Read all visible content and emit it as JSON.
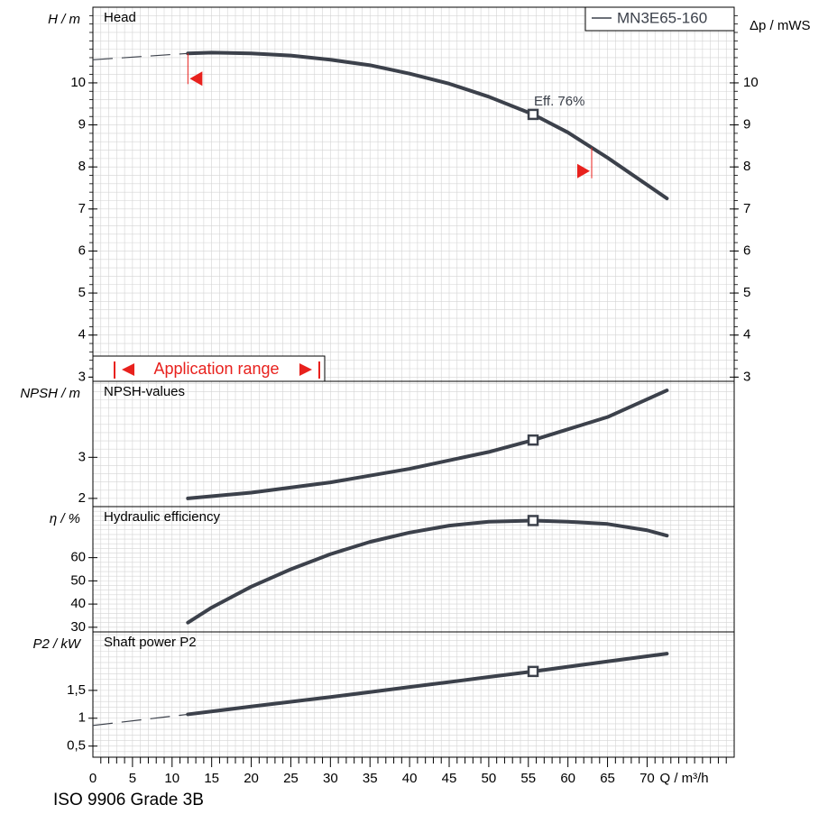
{
  "footer": "ISO 9906 Grade 3B",
  "legend": {
    "label": "MN3E65-160"
  },
  "x_axis": {
    "label": "Q / m³/h",
    "ticks": [
      "0",
      "5",
      "10",
      "15",
      "20",
      "25",
      "30",
      "35",
      "40",
      "45",
      "50",
      "55",
      "60",
      "65",
      "70"
    ],
    "tick_values": [
      0,
      5,
      10,
      15,
      20,
      25,
      30,
      35,
      40,
      45,
      50,
      55,
      60,
      65,
      70
    ],
    "range": [
      0,
      81
    ],
    "minor_step": 1
  },
  "colors": {
    "curve": "#3c414b",
    "accent": "#e8211d",
    "grid": "#d4d4d4",
    "frame": "#000000"
  },
  "chart_data": [
    {
      "type": "line",
      "title": "Head",
      "ylabel": "H / m",
      "ylabel_right": "Δp / mWS",
      "ylim": [
        2.9,
        11.8
      ],
      "yticks": [
        3,
        4,
        5,
        6,
        7,
        8,
        9,
        10
      ],
      "ytick_labels": [
        "3",
        "4",
        "5",
        "6",
        "7",
        "8",
        "9",
        "10"
      ],
      "grid": true,
      "series": [
        {
          "name": "MN3E65-160",
          "x": [
            12,
            15,
            20,
            25,
            30,
            35,
            40,
            45,
            50,
            55.6,
            60,
            65,
            72.5
          ],
          "y": [
            10.7,
            10.72,
            10.7,
            10.65,
            10.55,
            10.42,
            10.22,
            9.98,
            9.67,
            9.25,
            8.82,
            8.22,
            7.25
          ],
          "extrapolated": {
            "x": [
              0,
              12
            ],
            "y": [
              10.55,
              10.7
            ]
          }
        }
      ],
      "annotations": [
        {
          "text": "Eff.  76%",
          "x": 55.6,
          "y": 9.25
        }
      ],
      "application_range": {
        "label": "Application range",
        "x": [
          12,
          63
        ]
      }
    },
    {
      "type": "line",
      "title": "NPSH-values",
      "ylabel": "NPSH / m",
      "ylim": [
        1.8,
        4.85
      ],
      "yticks": [
        2,
        3
      ],
      "ytick_labels": [
        "2",
        "3"
      ],
      "grid": true,
      "series": [
        {
          "x": [
            12,
            20,
            30,
            40,
            50,
            55.6,
            65,
            72.5
          ],
          "y": [
            2.0,
            2.14,
            2.39,
            2.72,
            3.13,
            3.42,
            3.98,
            4.63
          ]
        }
      ],
      "marker": {
        "x": 55.6,
        "y": 3.42
      }
    },
    {
      "type": "line",
      "title": "Hydraulic efficiency",
      "ylabel": "η / %",
      "ylim": [
        28,
        82
      ],
      "yticks": [
        30,
        40,
        50,
        60
      ],
      "ytick_labels": [
        "30",
        "40",
        "50",
        "60"
      ],
      "grid": true,
      "series": [
        {
          "x": [
            12,
            15,
            20,
            25,
            30,
            35,
            40,
            45,
            50,
            55.6,
            60,
            65,
            70,
            72.5
          ],
          "y": [
            32,
            38.5,
            47.5,
            55,
            61.5,
            66.8,
            70.8,
            73.8,
            75.5,
            76,
            75.5,
            74.5,
            71.8,
            69.5
          ]
        }
      ],
      "marker": {
        "x": 55.6,
        "y": 76
      }
    },
    {
      "type": "line",
      "title": "Shaft power P2",
      "ylabel": "P2 / kW",
      "ylim": [
        0.3,
        2.55
      ],
      "yticks": [
        0.5,
        1,
        1.5
      ],
      "ytick_labels": [
        "0,5",
        "1",
        "1,5"
      ],
      "grid": true,
      "series": [
        {
          "x": [
            12,
            20,
            30,
            40,
            50,
            55.6,
            65,
            72.5
          ],
          "y": [
            1.07,
            1.21,
            1.38,
            1.56,
            1.74,
            1.84,
            2.02,
            2.16
          ],
          "extrapolated": {
            "x": [
              0,
              12
            ],
            "y": [
              0.87,
              1.07
            ]
          }
        }
      ],
      "marker": {
        "x": 55.6,
        "y": 1.84
      }
    }
  ]
}
